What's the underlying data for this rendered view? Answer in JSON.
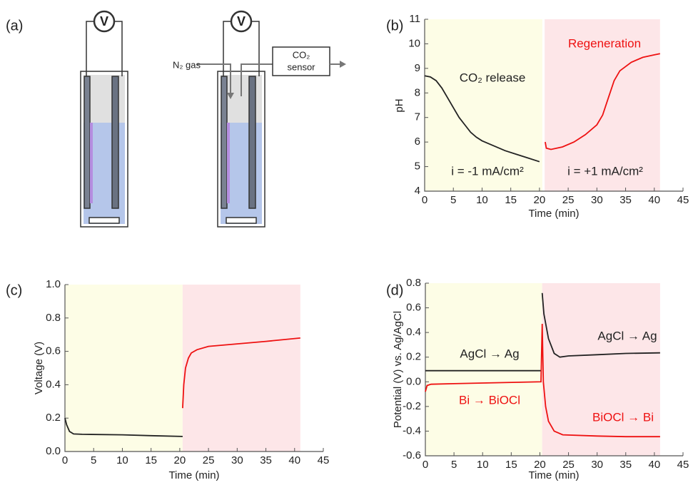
{
  "diagram": {
    "label": "(a)",
    "voltmeters": [
      "V",
      "V"
    ],
    "gas_in": "N₂ gas",
    "sensor": [
      "CO₂",
      "sensor"
    ]
  },
  "chart_data": [
    {
      "type": "line",
      "panel_label": "(b)",
      "xlabel": "Time (min)",
      "ylabel": "pH",
      "xlim": [
        0,
        45
      ],
      "xticks": [
        0,
        5,
        10,
        15,
        20,
        25,
        30,
        35,
        40,
        45
      ],
      "ylim": [
        4,
        11
      ],
      "yticks": [
        4,
        5,
        6,
        7,
        8,
        9,
        10,
        11
      ],
      "shaded_regions": [
        {
          "x": [
            0,
            20.5
          ],
          "color": "#fdfde6"
        },
        {
          "x": [
            20.9,
            41
          ],
          "color": "#fde6e8"
        }
      ],
      "series": [
        {
          "color": "#222222",
          "x": [
            0,
            1,
            2,
            3,
            4,
            5,
            6,
            7,
            8,
            9,
            10,
            12,
            14,
            16,
            18,
            20
          ],
          "values": [
            8.7,
            8.65,
            8.5,
            8.2,
            7.8,
            7.4,
            7.0,
            6.7,
            6.4,
            6.2,
            6.05,
            5.85,
            5.65,
            5.5,
            5.35,
            5.2
          ]
        },
        {
          "color": "#ee1111",
          "x": [
            21,
            21.2,
            22,
            24,
            26,
            28,
            30,
            31,
            32,
            33,
            34,
            36,
            38,
            40,
            41
          ],
          "values": [
            6.0,
            5.75,
            5.7,
            5.8,
            6.0,
            6.3,
            6.7,
            7.1,
            7.8,
            8.5,
            8.9,
            9.25,
            9.45,
            9.55,
            9.6
          ]
        }
      ],
      "annotations": [
        {
          "text": "CO₂ release",
          "color": "#222222"
        },
        {
          "text": "Regeneration",
          "color": "#ee1111"
        },
        {
          "text": "i = -1 mA/cm²",
          "color": "#222222"
        },
        {
          "text": "i = +1 mA/cm²",
          "color": "#222222"
        }
      ]
    },
    {
      "type": "line",
      "panel_label": "(c)",
      "xlabel": "Time (min)",
      "ylabel": "Voltage (V)",
      "xlim": [
        0,
        45
      ],
      "xticks": [
        0,
        5,
        10,
        15,
        20,
        25,
        30,
        35,
        40,
        45
      ],
      "ylim": [
        0,
        1
      ],
      "yticks": [
        {
          "value": 0,
          "label": "0.0"
        },
        0.2,
        0.4,
        0.6,
        0.8,
        {
          "value": 1,
          "label": "1.0"
        }
      ],
      "shaded_regions": [
        {
          "x": [
            0,
            20.5
          ],
          "color": "#fdfde6"
        },
        {
          "x": [
            20.5,
            41
          ],
          "color": "#fde6e8"
        }
      ],
      "series": [
        {
          "color": "#222222",
          "x": [
            0,
            0.3,
            0.8,
            1.5,
            3,
            10,
            15,
            20.5
          ],
          "values": [
            0.2,
            0.16,
            0.12,
            0.105,
            0.103,
            0.1,
            0.095,
            0.09
          ]
        },
        {
          "color": "#ee1111",
          "x": [
            20.5,
            20.7,
            21,
            21.5,
            22,
            23,
            25,
            30,
            35,
            41
          ],
          "values": [
            0.26,
            0.4,
            0.5,
            0.56,
            0.59,
            0.61,
            0.63,
            0.645,
            0.66,
            0.68
          ]
        }
      ],
      "annotations": []
    },
    {
      "type": "line",
      "panel_label": "(d)",
      "xlabel": "Time (min)",
      "ylabel": "Potential (V) vs. Ag/AgCl",
      "xlim": [
        0,
        45
      ],
      "xticks": [
        0,
        5,
        10,
        15,
        20,
        25,
        30,
        35,
        40,
        45
      ],
      "ylim": [
        -0.6,
        0.8
      ],
      "yticks": [
        -0.6,
        -0.4,
        -0.2,
        {
          "value": 0,
          "label": "0.0"
        },
        0.2,
        0.4,
        0.6,
        0.8
      ],
      "shaded_regions": [
        {
          "x": [
            0,
            20.4
          ],
          "color": "#fdfde6"
        },
        {
          "x": [
            20.4,
            41
          ],
          "color": "#fde6e8"
        }
      ],
      "series": [
        {
          "color": "#222222",
          "x": [
            0,
            20.3,
            null,
            20.4,
            20.7,
            21.5,
            22.5,
            23.5,
            25,
            30,
            35,
            41
          ],
          "values": [
            0.09,
            0.09,
            null,
            0.72,
            0.55,
            0.35,
            0.23,
            0.2,
            0.21,
            0.22,
            0.23,
            0.235
          ]
        },
        {
          "color": "#ee1111",
          "x": [
            0,
            0.3,
            1,
            5,
            10,
            20.2,
            20.4,
            20.6,
            21,
            21.5,
            22.5,
            24,
            30,
            35,
            41
          ],
          "values": [
            -0.08,
            -0.03,
            -0.02,
            -0.015,
            -0.01,
            0,
            0.47,
            0,
            -0.2,
            -0.32,
            -0.4,
            -0.43,
            -0.44,
            -0.445,
            -0.445
          ]
        }
      ],
      "annotations": [
        {
          "text": "AgCl → Ag",
          "color": "#222222"
        },
        {
          "text": "AgCl → Ag",
          "color": "#222222"
        },
        {
          "text": "Bi → BiOCl",
          "color": "#ee1111"
        },
        {
          "text": "BiOCl → Bi",
          "color": "#ee1111"
        }
      ]
    }
  ]
}
